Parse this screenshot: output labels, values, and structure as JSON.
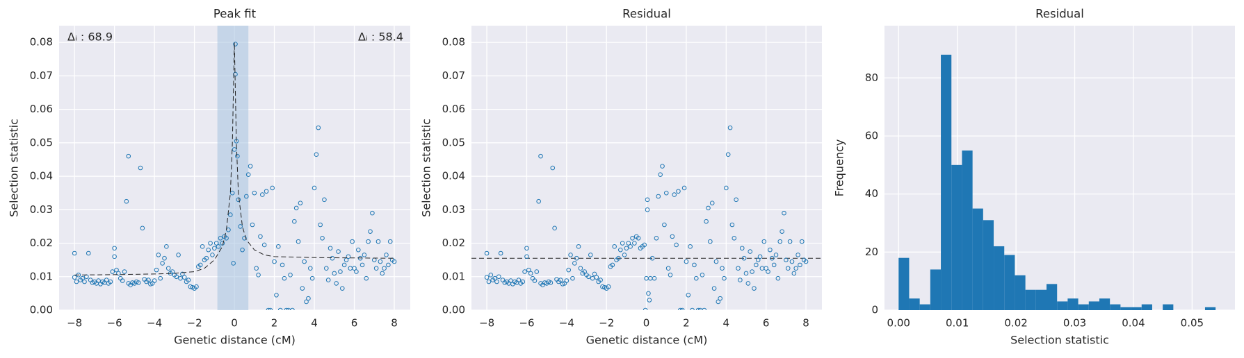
{
  "chart_data": [
    {
      "type": "scatter",
      "title": "Peak fit",
      "xlabel": "Genetic distance (cM)",
      "ylabel": "Selection statistic",
      "color": "#1f77b4",
      "grid": true,
      "xlim": [
        -8.77,
        8.8
      ],
      "ylim": [
        0,
        0.085
      ],
      "xticks": [
        {
          "value": -8,
          "label": "−8"
        },
        {
          "value": -6,
          "label": "−6"
        },
        {
          "value": -4,
          "label": "−4"
        },
        {
          "value": -2,
          "label": "−2"
        },
        0,
        2,
        4,
        6,
        8
      ],
      "yticks": [
        {
          "value": 0,
          "label": "0.00"
        },
        {
          "value": 0.01,
          "label": "0.01"
        },
        {
          "value": 0.02,
          "label": "0.02"
        },
        {
          "value": 0.03,
          "label": "0.03"
        },
        {
          "value": 0.04,
          "label": "0.04"
        },
        {
          "value": 0.05,
          "label": "0.05"
        },
        {
          "value": 0.06,
          "label": "0.06"
        },
        {
          "value": 0.07,
          "label": "0.07"
        },
        {
          "value": 0.08,
          "label": "0.08"
        }
      ],
      "span": [
        -0.85,
        0.7
      ],
      "annotations": [
        "Δᵢ : 68.9",
        "Δᵢ : 58.4"
      ],
      "fit": {
        "x": [
          -8,
          -6,
          -4,
          -3,
          -2,
          -1.5,
          -1,
          -0.6,
          -0.4,
          -0.2,
          -0.1,
          0,
          0.1,
          0.2,
          0.4,
          0.6,
          1,
          1.5,
          2,
          4,
          6,
          8
        ],
        "values": [
          0.0105,
          0.0106,
          0.0108,
          0.011,
          0.0115,
          0.0125,
          0.015,
          0.019,
          0.024,
          0.035,
          0.05,
          0.08,
          0.05,
          0.035,
          0.025,
          0.021,
          0.018,
          0.0165,
          0.016,
          0.0157,
          0.0156,
          0.0155
        ]
      },
      "x": [
        -8.0,
        -8.0,
        -7.9,
        -7.8,
        -7.7,
        -7.6,
        -7.5,
        -7.4,
        -7.3,
        -7.2,
        -7.1,
        -7.0,
        -6.9,
        -6.8,
        -6.7,
        -6.6,
        -6.5,
        -6.4,
        -6.3,
        -6.2,
        -6.1,
        -6.0,
        -6.0,
        -5.9,
        -5.8,
        -5.7,
        -5.6,
        -5.5,
        -5.4,
        -5.3,
        -5.3,
        -5.2,
        -5.1,
        -5.0,
        -4.9,
        -4.8,
        -4.7,
        -4.6,
        -4.5,
        -4.4,
        -4.3,
        -4.2,
        -4.1,
        -4.0,
        -3.9,
        -3.8,
        -3.7,
        -3.6,
        -3.5,
        -3.4,
        -3.3,
        -3.2,
        -3.1,
        -3.0,
        -2.9,
        -2.8,
        -2.7,
        -2.6,
        -2.5,
        -2.4,
        -2.3,
        -2.2,
        -2.1,
        -2.0,
        -1.9,
        -1.8,
        -1.7,
        -1.6,
        -1.5,
        -1.4,
        -1.3,
        -1.2,
        -1.1,
        -1.0,
        -0.9,
        -0.8,
        -0.7,
        -0.6,
        -0.5,
        -0.4,
        -0.3,
        -0.2,
        -0.1,
        -0.05,
        0.0,
        0.05,
        0.05,
        0.1,
        0.15,
        0.2,
        0.3,
        0.4,
        0.5,
        0.6,
        0.7,
        0.8,
        0.9,
        1.0,
        1.1,
        1.2,
        1.3,
        1.4,
        1.5,
        1.6,
        1.7,
        1.8,
        1.9,
        2.0,
        2.1,
        2.2,
        2.3,
        2.4,
        2.5,
        2.6,
        2.7,
        2.8,
        2.9,
        3.0,
        3.1,
        3.2,
        3.3,
        3.4,
        3.5,
        3.6,
        3.7,
        3.8,
        3.9,
        4.0,
        4.1,
        4.2,
        4.3,
        4.4,
        4.5,
        4.6,
        4.7,
        4.8,
        4.9,
        5.0,
        5.1,
        5.2,
        5.3,
        5.4,
        5.5,
        5.6,
        5.7,
        5.8,
        5.9,
        6.0,
        6.1,
        6.2,
        6.3,
        6.4,
        6.5,
        6.6,
        6.7,
        6.8,
        6.9,
        7.0,
        7.1,
        7.2,
        7.3,
        7.4,
        7.5,
        7.6,
        7.7,
        7.8,
        7.9,
        8.0
      ],
      "values": [
        0.017,
        0.0098,
        0.0085,
        0.0105,
        0.009,
        0.0095,
        0.0085,
        0.01,
        0.017,
        0.009,
        0.0082,
        0.0085,
        0.008,
        0.0088,
        0.0078,
        0.0085,
        0.0082,
        0.009,
        0.008,
        0.0085,
        0.0115,
        0.0185,
        0.016,
        0.012,
        0.011,
        0.0095,
        0.0088,
        0.0115,
        0.0325,
        0.046,
        0.008,
        0.0075,
        0.0082,
        0.008,
        0.0085,
        0.0082,
        0.0425,
        0.0245,
        0.0092,
        0.0085,
        0.009,
        0.0078,
        0.008,
        0.0088,
        0.012,
        0.0165,
        0.0095,
        0.014,
        0.0155,
        0.019,
        0.0125,
        0.011,
        0.0115,
        0.0105,
        0.01,
        0.0165,
        0.0095,
        0.0108,
        0.0098,
        0.0085,
        0.009,
        0.007,
        0.0068,
        0.0065,
        0.007,
        0.013,
        0.0135,
        0.019,
        0.015,
        0.0155,
        0.018,
        0.02,
        0.0165,
        0.0185,
        0.02,
        0.019,
        0.0215,
        0.02,
        0.022,
        0.0215,
        0.024,
        0.0285,
        0.035,
        0.014,
        0.048,
        0.0795,
        0.0705,
        0.0505,
        0.046,
        0.033,
        0.025,
        0.018,
        0.0215,
        0.034,
        0.0405,
        0.043,
        0.0255,
        0.035,
        0.0125,
        0.0105,
        0.022,
        0.0345,
        0.0195,
        0.0355,
        0.0,
        0.0,
        0.0365,
        0.0145,
        0.0045,
        0.019,
        0.0,
        0.0135,
        0.0095,
        0.0,
        0.0,
        0.0105,
        0.0,
        0.0265,
        0.0305,
        0.0205,
        0.032,
        0.0065,
        0.0145,
        0.0025,
        0.0035,
        0.0125,
        0.0095,
        0.0365,
        0.0465,
        0.0545,
        0.0255,
        0.0215,
        0.033,
        0.0125,
        0.009,
        0.0185,
        0.0155,
        0.011,
        0.008,
        0.0175,
        0.0115,
        0.0065,
        0.0135,
        0.015,
        0.016,
        0.0125,
        0.0205,
        0.0125,
        0.0115,
        0.018,
        0.0155,
        0.0135,
        0.0165,
        0.0095,
        0.0205,
        0.0235,
        0.029,
        0.015,
        0.0125,
        0.0205,
        0.0145,
        0.011,
        0.0125,
        0.0165,
        0.0135,
        0.0205,
        0.015,
        0.0145
      ]
    },
    {
      "type": "scatter",
      "title": "Residual",
      "xlabel": "Genetic distance (cM)",
      "ylabel": "Selection statistic",
      "color": "#1f77b4",
      "grid": true,
      "xlim": [
        -8.77,
        8.8
      ],
      "ylim": [
        0,
        0.085
      ],
      "xticks": [
        {
          "value": -8,
          "label": "−8"
        },
        {
          "value": -6,
          "label": "−6"
        },
        {
          "value": -4,
          "label": "−4"
        },
        {
          "value": -2,
          "label": "−2"
        },
        0,
        2,
        4,
        6,
        8
      ],
      "yticks": [
        {
          "value": 0,
          "label": "0.00"
        },
        {
          "value": 0.01,
          "label": "0.01"
        },
        {
          "value": 0.02,
          "label": "0.02"
        },
        {
          "value": 0.03,
          "label": "0.03"
        },
        {
          "value": 0.04,
          "label": "0.04"
        },
        {
          "value": 0.05,
          "label": "0.05"
        },
        {
          "value": 0.06,
          "label": "0.06"
        },
        {
          "value": 0.07,
          "label": "0.07"
        },
        {
          "value": 0.08,
          "label": "0.08"
        }
      ],
      "hline": 0.0155,
      "x": [
        -8.0,
        -8.0,
        -7.9,
        -7.8,
        -7.7,
        -7.6,
        -7.5,
        -7.4,
        -7.3,
        -7.2,
        -7.1,
        -7.0,
        -6.9,
        -6.8,
        -6.7,
        -6.6,
        -6.5,
        -6.4,
        -6.3,
        -6.2,
        -6.1,
        -6.0,
        -6.0,
        -5.9,
        -5.8,
        -5.7,
        -5.6,
        -5.5,
        -5.4,
        -5.3,
        -5.3,
        -5.2,
        -5.1,
        -5.0,
        -4.9,
        -4.8,
        -4.7,
        -4.6,
        -4.5,
        -4.4,
        -4.3,
        -4.2,
        -4.1,
        -4.0,
        -3.9,
        -3.8,
        -3.7,
        -3.6,
        -3.5,
        -3.4,
        -3.3,
        -3.2,
        -3.1,
        -3.0,
        -2.9,
        -2.8,
        -2.7,
        -2.6,
        -2.5,
        -2.4,
        -2.3,
        -2.2,
        -2.1,
        -2.0,
        -1.9,
        -1.8,
        -1.7,
        -1.6,
        -1.5,
        -1.4,
        -1.3,
        -1.2,
        -1.1,
        -1.0,
        -0.9,
        -0.8,
        -0.7,
        -0.6,
        -0.5,
        -0.4,
        -0.3,
        -0.2,
        -0.1,
        -0.05,
        0.0,
        0.05,
        0.05,
        0.1,
        0.15,
        0.2,
        0.3,
        0.4,
        0.5,
        0.6,
        0.7,
        0.8,
        0.9,
        1.0,
        1.1,
        1.2,
        1.3,
        1.4,
        1.5,
        1.6,
        1.7,
        1.8,
        1.9,
        2.0,
        2.1,
        2.2,
        2.3,
        2.4,
        2.5,
        2.6,
        2.7,
        2.8,
        2.9,
        3.0,
        3.1,
        3.2,
        3.3,
        3.4,
        3.5,
        3.6,
        3.7,
        3.8,
        3.9,
        4.0,
        4.1,
        4.2,
        4.3,
        4.4,
        4.5,
        4.6,
        4.7,
        4.8,
        4.9,
        5.0,
        5.1,
        5.2,
        5.3,
        5.4,
        5.5,
        5.6,
        5.7,
        5.8,
        5.9,
        6.0,
        6.1,
        6.2,
        6.3,
        6.4,
        6.5,
        6.6,
        6.7,
        6.8,
        6.9,
        7.0,
        7.1,
        7.2,
        7.3,
        7.4,
        7.5,
        7.6,
        7.7,
        7.8,
        7.9,
        8.0
      ],
      "values": [
        0.017,
        0.0098,
        0.0085,
        0.0105,
        0.009,
        0.0095,
        0.0085,
        0.01,
        0.017,
        0.009,
        0.0082,
        0.0085,
        0.008,
        0.0088,
        0.0078,
        0.0085,
        0.0082,
        0.009,
        0.008,
        0.0085,
        0.0115,
        0.0185,
        0.016,
        0.012,
        0.011,
        0.0095,
        0.0088,
        0.0115,
        0.0325,
        0.046,
        0.008,
        0.0075,
        0.0082,
        0.008,
        0.0085,
        0.0082,
        0.0425,
        0.0245,
        0.0092,
        0.0085,
        0.009,
        0.0078,
        0.008,
        0.0088,
        0.012,
        0.0165,
        0.0095,
        0.014,
        0.0155,
        0.019,
        0.0125,
        0.011,
        0.0115,
        0.0105,
        0.01,
        0.0165,
        0.0095,
        0.0108,
        0.0098,
        0.0085,
        0.009,
        0.007,
        0.0068,
        0.0065,
        0.007,
        0.013,
        0.0135,
        0.019,
        0.015,
        0.0155,
        0.018,
        0.02,
        0.0165,
        0.0185,
        0.02,
        0.019,
        0.0215,
        0.02,
        0.022,
        0.0215,
        0.0185,
        0.019,
        0.0195,
        0.0,
        0.0095,
        0.03,
        0.033,
        0.005,
        0.003,
        0.0095,
        0.0155,
        0.0095,
        0.0215,
        0.034,
        0.0405,
        0.043,
        0.0255,
        0.035,
        0.0125,
        0.0105,
        0.022,
        0.0345,
        0.0195,
        0.0355,
        0.0,
        0.0,
        0.0365,
        0.0145,
        0.0045,
        0.019,
        0.0,
        0.0135,
        0.0095,
        0.0,
        0.0,
        0.0105,
        0.0,
        0.0265,
        0.0305,
        0.0205,
        0.032,
        0.0065,
        0.0145,
        0.0025,
        0.0035,
        0.0125,
        0.0095,
        0.0365,
        0.0465,
        0.0545,
        0.0255,
        0.0215,
        0.033,
        0.0125,
        0.009,
        0.0185,
        0.0155,
        0.011,
        0.008,
        0.0175,
        0.0115,
        0.0065,
        0.0135,
        0.015,
        0.016,
        0.0125,
        0.0205,
        0.0125,
        0.0115,
        0.018,
        0.0155,
        0.0135,
        0.0165,
        0.0095,
        0.0205,
        0.0235,
        0.029,
        0.015,
        0.0125,
        0.0205,
        0.0145,
        0.011,
        0.0125,
        0.0165,
        0.0135,
        0.0205,
        0.015,
        0.0145
      ]
    },
    {
      "type": "histogram",
      "title": "Residual",
      "xlabel": "Selection statistic",
      "ylabel": "Frequency",
      "color": "#1f77b4",
      "grid": true,
      "xlim": [
        -0.0024,
        0.0573
      ],
      "ylim": [
        0,
        98
      ],
      "xticks": [
        {
          "value": 0,
          "label": "0.00"
        },
        {
          "value": 0.01,
          "label": "0.01"
        },
        {
          "value": 0.02,
          "label": "0.02"
        },
        {
          "value": 0.03,
          "label": "0.03"
        },
        {
          "value": 0.04,
          "label": "0.04"
        },
        {
          "value": 0.05,
          "label": "0.05"
        }
      ],
      "yticks": [
        0,
        20,
        40,
        60,
        80
      ],
      "bins": [
        0.0,
        0.0018,
        0.0036,
        0.0054,
        0.0072,
        0.009,
        0.0108,
        0.0126,
        0.0144,
        0.0162,
        0.018,
        0.0198,
        0.0216,
        0.0234,
        0.0252,
        0.027,
        0.0288,
        0.0306,
        0.0324,
        0.0342,
        0.036,
        0.0378,
        0.0396,
        0.0414,
        0.0432,
        0.045,
        0.0468,
        0.0486,
        0.0504,
        0.0522,
        0.054
      ],
      "values": [
        18,
        4,
        2,
        14,
        88,
        50,
        55,
        35,
        31,
        22,
        19,
        12,
        7,
        7,
        9,
        3,
        4,
        2,
        3,
        4,
        2,
        1,
        1,
        2,
        0,
        2,
        0,
        0,
        0,
        1
      ]
    }
  ]
}
